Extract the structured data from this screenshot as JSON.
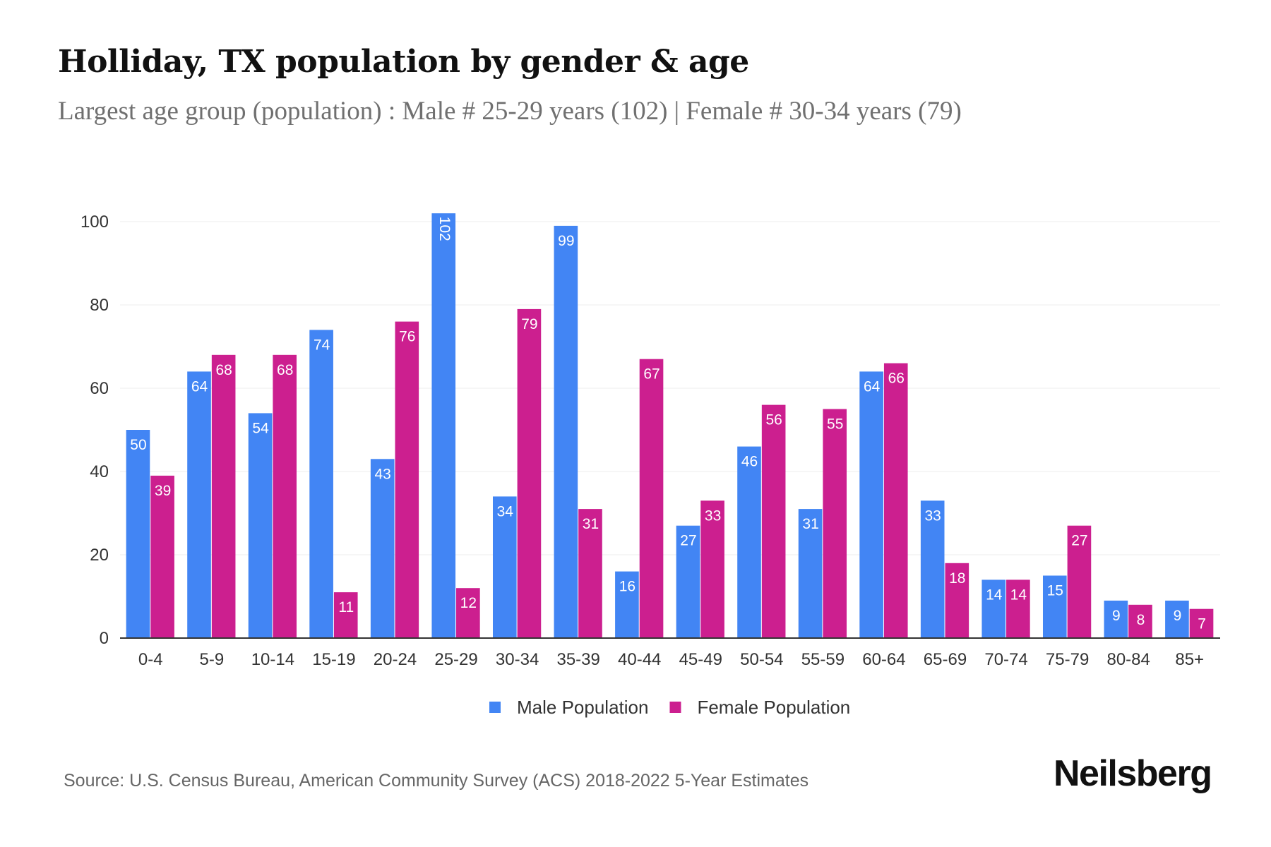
{
  "title": "Holliday, TX population by gender & age",
  "subtitle": "Largest age group (population) : Male # 25-29 years (102) | Female # 30-34 years (79)",
  "source": "Source: U.S. Census Bureau, American Community Survey (ACS) 2018-2022 5-Year Estimates",
  "logo": "Neilsberg",
  "chart_data": {
    "type": "bar",
    "title": "Holliday, TX population by gender & age",
    "xlabel": "",
    "ylabel": "",
    "ylim": [
      0,
      100
    ],
    "yticks": [
      0,
      20,
      40,
      60,
      80,
      100
    ],
    "grid": true,
    "legend": "bottom-center",
    "categories": [
      "0-4",
      "5-9",
      "10-14",
      "15-19",
      "20-24",
      "25-29",
      "30-34",
      "35-39",
      "40-44",
      "45-49",
      "50-54",
      "55-59",
      "60-64",
      "65-69",
      "70-74",
      "75-79",
      "80-84",
      "85+"
    ],
    "series": [
      {
        "name": "Male Population",
        "color": "#4285F4",
        "values": [
          50,
          64,
          54,
          74,
          43,
          102,
          34,
          99,
          16,
          27,
          46,
          31,
          64,
          33,
          14,
          15,
          9,
          9
        ]
      },
      {
        "name": "Female Population",
        "color": "#CC1F8F",
        "values": [
          39,
          68,
          68,
          11,
          76,
          12,
          79,
          31,
          67,
          33,
          56,
          55,
          66,
          18,
          14,
          27,
          8,
          7
        ]
      }
    ]
  }
}
